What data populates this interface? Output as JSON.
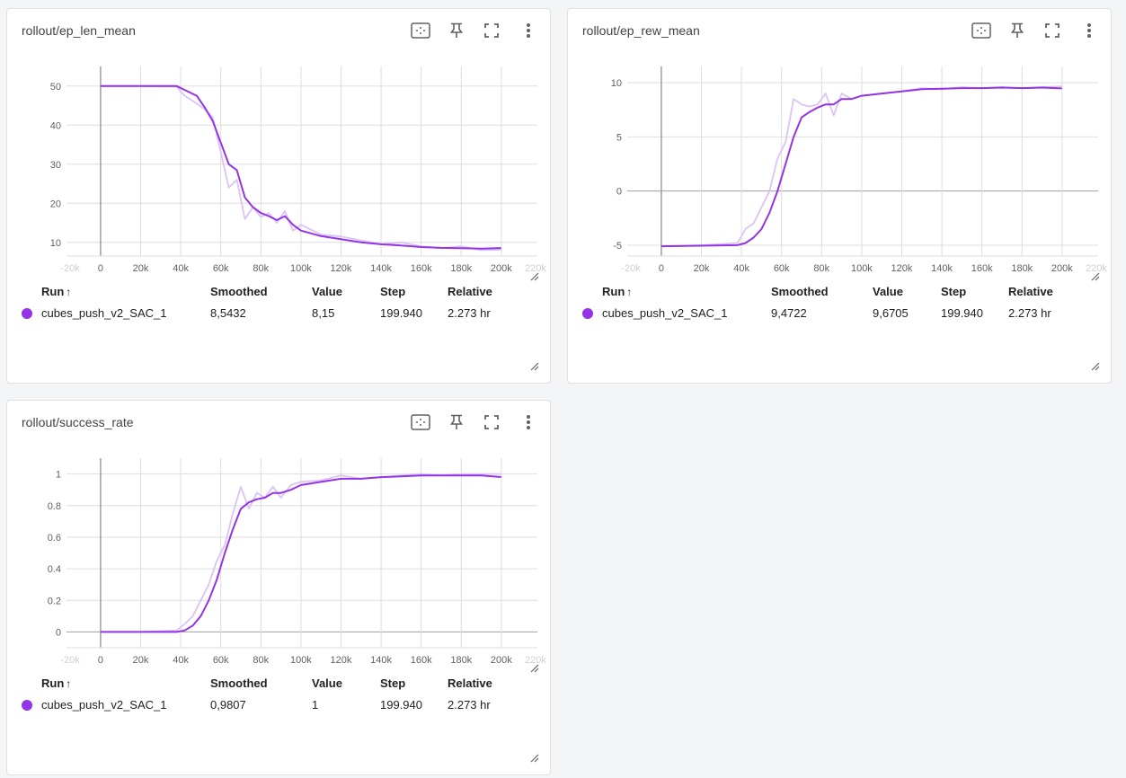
{
  "theme": {
    "series_color": "#9334e6",
    "raw_color": "#dcc3f5",
    "grid_color": "#dddddd",
    "axis_color": "#9e9e9e"
  },
  "toolbar_icons": [
    "fit-domain-icon",
    "pin-icon",
    "fullscreen-icon",
    "more-vert-icon"
  ],
  "table_headers": {
    "run": "Run",
    "sort_arrow": "↑",
    "smoothed": "Smoothed",
    "value": "Value",
    "step": "Step",
    "relative": "Relative"
  },
  "cards": [
    {
      "title": "rollout/ep_len_mean",
      "row": {
        "run": "cubes_push_v2_SAC_1",
        "smoothed": "8,5432",
        "value": "8,15",
        "step": "199.940",
        "relative": "2.273 hr"
      }
    },
    {
      "title": "rollout/ep_rew_mean",
      "row": {
        "run": "cubes_push_v2_SAC_1",
        "smoothed": "9,4722",
        "value": "9,6705",
        "step": "199.940",
        "relative": "2.273 hr"
      }
    },
    {
      "title": "rollout/success_rate",
      "row": {
        "run": "cubes_push_v2_SAC_1",
        "smoothed": "0,9807",
        "value": "1",
        "step": "199.940",
        "relative": "2.273 hr"
      }
    }
  ],
  "chart_data": [
    {
      "type": "line",
      "title": "rollout/ep_len_mean",
      "xlim": [
        -17000,
        218000
      ],
      "ylim": [
        6.5,
        55
      ],
      "x_ticks": [
        0,
        20000,
        40000,
        60000,
        80000,
        100000,
        120000,
        140000,
        160000,
        180000,
        200000
      ],
      "x_tick_labels": [
        "0",
        "20k",
        "40k",
        "60k",
        "80k",
        "100k",
        "120k",
        "140k",
        "160k",
        "180k",
        "200k"
      ],
      "x_faint_tick_labels": [
        "-20k",
        "220k"
      ],
      "y_ticks": [
        10,
        20,
        30,
        40,
        50
      ],
      "y_tick_labels": [
        "10",
        "20",
        "30",
        "40",
        "50"
      ],
      "grid": true,
      "series": [
        {
          "name": "cubes_push_v2_SAC_1",
          "x": [
            0,
            20000,
            38000,
            42000,
            48000,
            52000,
            56000,
            60000,
            64000,
            68000,
            72000,
            76000,
            80000,
            84000,
            88000,
            92000,
            96000,
            100000,
            110000,
            120000,
            130000,
            140000,
            150000,
            160000,
            170000,
            180000,
            190000,
            199940
          ],
          "y_raw": [
            50,
            50,
            49.8,
            47.5,
            45.5,
            44,
            42,
            33,
            24,
            26,
            16,
            19,
            16.5,
            17.5,
            15,
            18,
            13,
            14.5,
            12,
            11.5,
            10.5,
            9.5,
            10,
            9,
            8.5,
            9,
            8,
            8.15
          ],
          "y_smoothed": [
            50,
            50,
            50,
            49,
            47.5,
            44.5,
            41,
            35.5,
            30,
            28.5,
            21.5,
            19,
            17.5,
            16.7,
            15.7,
            16.7,
            14.5,
            13,
            11.6,
            10.8,
            10,
            9.5,
            9.2,
            8.8,
            8.6,
            8.5,
            8.4,
            8.5432
          ]
        }
      ]
    },
    {
      "type": "line",
      "title": "rollout/ep_rew_mean",
      "xlim": [
        -17000,
        218000
      ],
      "ylim": [
        -6,
        11.5
      ],
      "x_ticks": [
        0,
        20000,
        40000,
        60000,
        80000,
        100000,
        120000,
        140000,
        160000,
        180000,
        200000
      ],
      "x_tick_labels": [
        "0",
        "20k",
        "40k",
        "60k",
        "80k",
        "100k",
        "120k",
        "140k",
        "160k",
        "180k",
        "200k"
      ],
      "x_faint_tick_labels": [
        "-20k",
        "220k"
      ],
      "y_ticks": [
        -5,
        0,
        5,
        10
      ],
      "y_tick_labels": [
        "-5",
        "0",
        "5",
        "10"
      ],
      "grid": true,
      "series": [
        {
          "name": "cubes_push_v2_SAC_1",
          "x": [
            0,
            20000,
            38000,
            42000,
            46000,
            50000,
            54000,
            58000,
            62000,
            66000,
            70000,
            74000,
            78000,
            82000,
            86000,
            90000,
            95000,
            100000,
            110000,
            120000,
            130000,
            140000,
            150000,
            160000,
            170000,
            180000,
            190000,
            199940
          ],
          "y_raw": [
            -5.1,
            -5,
            -4.8,
            -3.5,
            -3,
            -1.5,
            0,
            3,
            4.5,
            8.5,
            8,
            7.8,
            8,
            9,
            7,
            9,
            8.5,
            8.8,
            9,
            9.2,
            9.5,
            9.4,
            9.6,
            9.5,
            9.6,
            9.5,
            9.6,
            9.6705
          ],
          "y_smoothed": [
            -5.1,
            -5.05,
            -5,
            -4.8,
            -4.3,
            -3.5,
            -2,
            0,
            2.5,
            5,
            6.8,
            7.3,
            7.7,
            8,
            8,
            8.5,
            8.5,
            8.8,
            9,
            9.2,
            9.4,
            9.45,
            9.5,
            9.5,
            9.55,
            9.5,
            9.55,
            9.4722
          ]
        }
      ]
    },
    {
      "type": "line",
      "title": "rollout/success_rate",
      "xlim": [
        -17000,
        218000
      ],
      "ylim": [
        -0.1,
        1.1
      ],
      "x_ticks": [
        0,
        20000,
        40000,
        60000,
        80000,
        100000,
        120000,
        140000,
        160000,
        180000,
        200000
      ],
      "x_tick_labels": [
        "0",
        "20k",
        "40k",
        "60k",
        "80k",
        "100k",
        "120k",
        "140k",
        "160k",
        "180k",
        "200k"
      ],
      "x_faint_tick_labels": [
        "-20k",
        "220k"
      ],
      "y_ticks": [
        0,
        0.2,
        0.4,
        0.6,
        0.8,
        1
      ],
      "y_tick_labels": [
        "0",
        "0.2",
        "0.4",
        "0.6",
        "0.8",
        "1"
      ],
      "grid": true,
      "series": [
        {
          "name": "cubes_push_v2_SAC_1",
          "x": [
            0,
            20000,
            38000,
            42000,
            46000,
            50000,
            54000,
            58000,
            62000,
            66000,
            70000,
            74000,
            78000,
            82000,
            86000,
            90000,
            95000,
            100000,
            110000,
            120000,
            130000,
            140000,
            150000,
            160000,
            170000,
            180000,
            190000,
            199940
          ],
          "y_raw": [
            0,
            0,
            0.01,
            0.05,
            0.1,
            0.2,
            0.3,
            0.45,
            0.55,
            0.75,
            0.92,
            0.78,
            0.88,
            0.85,
            0.92,
            0.85,
            0.93,
            0.95,
            0.96,
            0.99,
            0.97,
            0.98,
            0.99,
            1,
            0.99,
            1,
            1,
            1
          ],
          "y_smoothed": [
            0,
            0,
            0,
            0.01,
            0.04,
            0.1,
            0.2,
            0.33,
            0.5,
            0.65,
            0.78,
            0.82,
            0.84,
            0.85,
            0.88,
            0.88,
            0.9,
            0.93,
            0.95,
            0.97,
            0.97,
            0.98,
            0.985,
            0.99,
            0.99,
            0.99,
            0.99,
            0.9807
          ]
        }
      ]
    }
  ]
}
